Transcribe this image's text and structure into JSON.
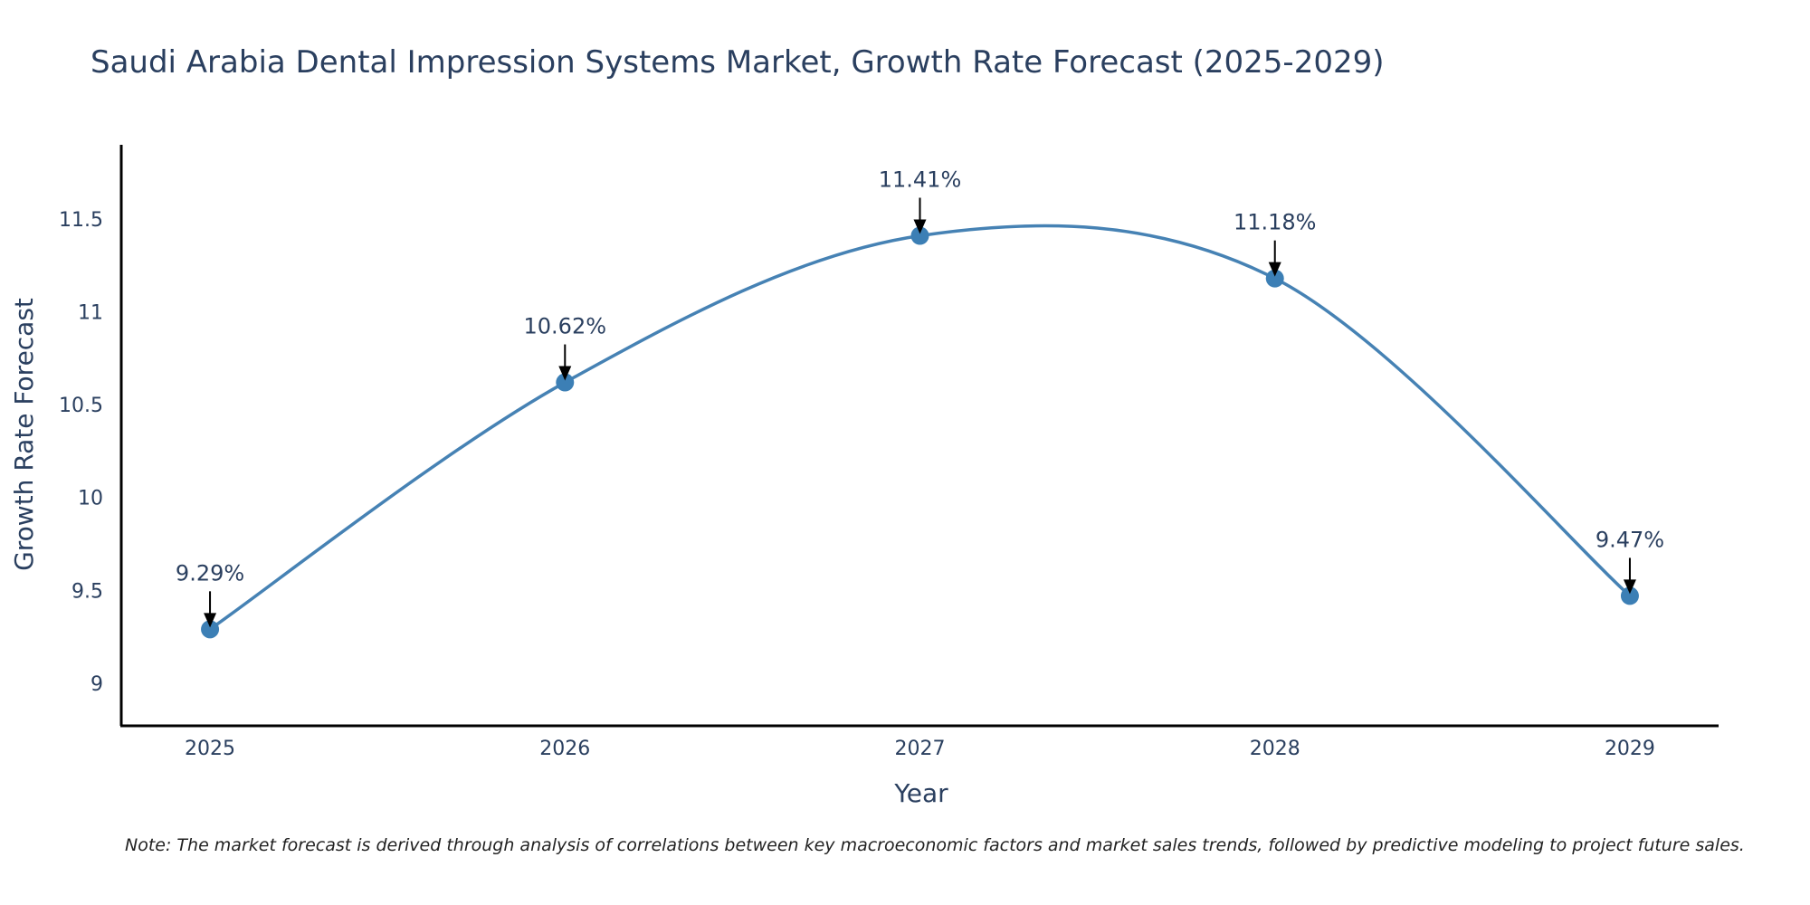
{
  "chart_data": {
    "type": "line",
    "title": "Saudi Arabia Dental Impression Systems Market, Growth Rate Forecast (2025-2029)",
    "xlabel": "Year",
    "ylabel": "Growth Rate Forecast",
    "categories": [
      "2025",
      "2026",
      "2027",
      "2028",
      "2029"
    ],
    "series": [
      {
        "name": "Growth Rate Forecast",
        "values": [
          9.29,
          10.62,
          11.41,
          11.18,
          9.47
        ],
        "labels": [
          "9.29%",
          "10.62%",
          "11.41%",
          "11.18%",
          "9.47%"
        ]
      }
    ],
    "yticks": [
      {
        "value": 9,
        "label": "9"
      },
      {
        "value": 9.5,
        "label": "9.5"
      },
      {
        "value": 10,
        "label": "10"
      },
      {
        "value": 10.5,
        "label": "10.5"
      },
      {
        "value": 11,
        "label": "11"
      },
      {
        "value": 11.5,
        "label": "11.5"
      }
    ],
    "ylim": [
      8.77,
      11.9
    ],
    "xlim": [
      -0.25,
      4.25
    ],
    "grid": false,
    "line_color": "#4682b4",
    "marker_color": "#3c7fb5",
    "note": "Note: The market forecast is derived through analysis of correlations between key macroeconomic factors and market sales trends, followed by predictive modeling to project future sales."
  }
}
